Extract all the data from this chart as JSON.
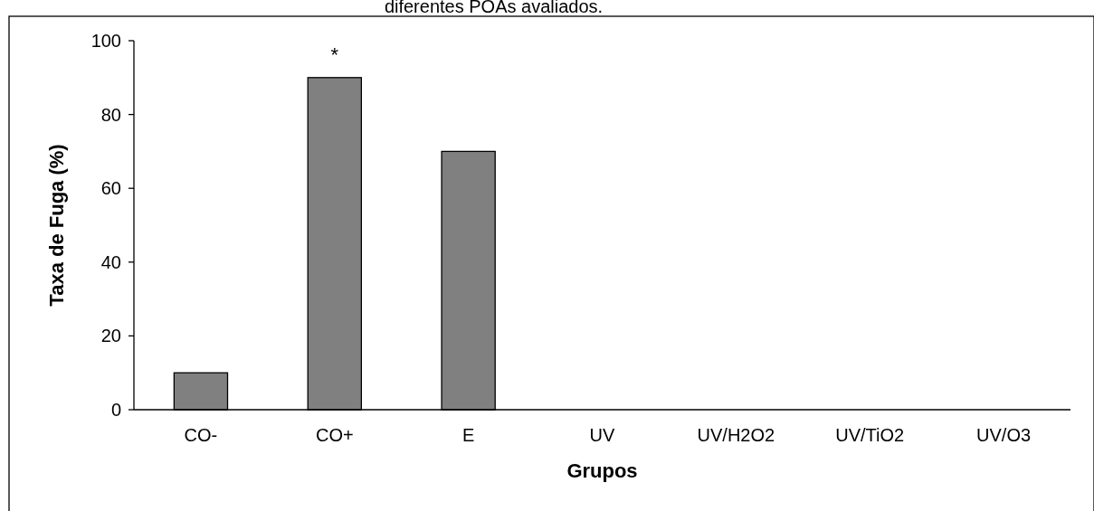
{
  "chart_data": {
    "type": "bar",
    "title": "diferentes POAs avaliados.",
    "xlabel": "Grupos",
    "ylabel": "Taxa de Fuga (%)",
    "categories": [
      "CO-",
      "CO+",
      "E",
      "UV",
      "UV/H2O2",
      "UV/TiO2",
      "UV/O3"
    ],
    "values": [
      10,
      90,
      70,
      0,
      0,
      0,
      0
    ],
    "color": "#808080",
    "ylim": [
      0,
      100
    ],
    "yticks": [
      0,
      20,
      40,
      60,
      80,
      100
    ],
    "grid": false,
    "annotations": [
      {
        "text": "*",
        "x": "CO+",
        "y": 90
      }
    ]
  }
}
